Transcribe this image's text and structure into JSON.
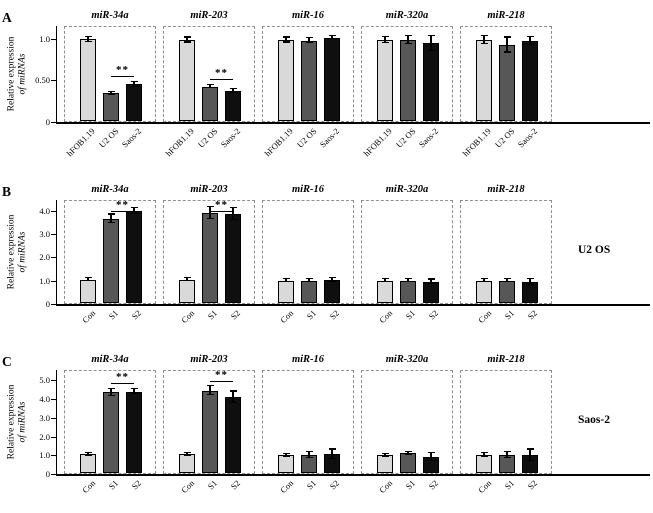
{
  "figure": {
    "bar_colors": [
      "#d9d9d9",
      "#575757",
      "#0f0f0f"
    ],
    "panel_border_color": "#8f8f8f",
    "axis_color": "#000000"
  },
  "chart_data": [
    {
      "type": "bar",
      "letter": "A",
      "ylabel_line1": "Relative expression",
      "ylabel_line2": "of miRNAs",
      "right_label": "",
      "ylim": [
        0,
        1.15
      ],
      "yticks": [
        {
          "label": "1.0",
          "value": 1.0
        },
        {
          "label": "0.50",
          "value": 0.5
        },
        {
          "label": "0",
          "value": 0
        }
      ],
      "categories": [
        "hFOB1.19",
        "U2 OS",
        "Saos-2"
      ],
      "panels": [
        {
          "title": "miR-34a",
          "values": [
            0.98,
            0.33,
            0.44
          ],
          "errors": [
            0.03,
            0.02,
            0.03
          ],
          "sig": "**",
          "sig_bars": [
            1,
            2
          ]
        },
        {
          "title": "miR-203",
          "values": [
            0.97,
            0.41,
            0.36
          ],
          "errors": [
            0.03,
            0.02,
            0.02
          ],
          "sig": "**",
          "sig_bars": [
            1,
            2
          ]
        },
        {
          "title": "miR-16",
          "values": [
            0.97,
            0.96,
            1.0
          ],
          "errors": [
            0.03,
            0.03,
            0.02
          ]
        },
        {
          "title": "miR-320a",
          "values": [
            0.97,
            0.97,
            0.93
          ],
          "errors": [
            0.04,
            0.05,
            0.09
          ]
        },
        {
          "title": "miR-218",
          "values": [
            0.97,
            0.91,
            0.96
          ],
          "errors": [
            0.05,
            0.09,
            0.05
          ]
        }
      ]
    },
    {
      "type": "bar",
      "letter": "B",
      "ylabel_line1": "Relative expression",
      "ylabel_line2": "of miRNAs",
      "right_label": "U2 OS",
      "ylim": [
        0,
        4.45
      ],
      "yticks": [
        {
          "label": "4.0",
          "value": 4.0
        },
        {
          "label": "3.0",
          "value": 3.0
        },
        {
          "label": "2.0",
          "value": 2.0
        },
        {
          "label": "1.0",
          "value": 1.0
        },
        {
          "label": "0",
          "value": 0
        }
      ],
      "categories": [
        "Con",
        "S1",
        "S2"
      ],
      "panels": [
        {
          "title": "miR-34a",
          "values": [
            1.0,
            3.6,
            3.95
          ],
          "errors": [
            0.07,
            0.18,
            0.12
          ],
          "sig": "**",
          "sig_bars": [
            1,
            2
          ]
        },
        {
          "title": "miR-203",
          "values": [
            1.0,
            3.85,
            3.8
          ],
          "errors": [
            0.07,
            0.25,
            0.25
          ],
          "sig": "**",
          "sig_bars": [
            1,
            2
          ]
        },
        {
          "title": "miR-16",
          "values": [
            0.95,
            0.95,
            0.98
          ],
          "errors": [
            0.07,
            0.07,
            0.07
          ]
        },
        {
          "title": "miR-320a",
          "values": [
            0.95,
            0.95,
            0.9
          ],
          "errors": [
            0.07,
            0.07,
            0.1
          ]
        },
        {
          "title": "miR-218",
          "values": [
            0.95,
            0.95,
            0.9
          ],
          "errors": [
            0.07,
            0.07,
            0.12
          ]
        }
      ]
    },
    {
      "type": "bar",
      "letter": "C",
      "ylabel_line1": "Relative expression",
      "ylabel_line2": "of miRNAs",
      "right_label": "Saos-2",
      "ylim": [
        0,
        5.55
      ],
      "yticks": [
        {
          "label": "5.0",
          "value": 5.0
        },
        {
          "label": "4.0",
          "value": 4.0
        },
        {
          "label": "3.0",
          "value": 3.0
        },
        {
          "label": "2.0",
          "value": 2.0
        },
        {
          "label": "1.0",
          "value": 1.0
        },
        {
          "label": "0",
          "value": 0
        }
      ],
      "categories": [
        "Con",
        "S1",
        "S2"
      ],
      "panels": [
        {
          "title": "miR-34a",
          "values": [
            1.0,
            4.3,
            4.35
          ],
          "errors": [
            0.07,
            0.2,
            0.15
          ],
          "sig": "**",
          "sig_bars": [
            1,
            2
          ]
        },
        {
          "title": "miR-203",
          "values": [
            1.0,
            4.4,
            4.05
          ],
          "errors": [
            0.07,
            0.25,
            0.3
          ],
          "sig": "**",
          "sig_bars": [
            1,
            2
          ]
        },
        {
          "title": "miR-16",
          "values": [
            0.95,
            0.95,
            1.0
          ],
          "errors": [
            0.08,
            0.15,
            0.25
          ]
        },
        {
          "title": "miR-320a",
          "values": [
            0.95,
            1.05,
            0.85
          ],
          "errors": [
            0.08,
            0.08,
            0.2
          ]
        },
        {
          "title": "miR-218",
          "values": [
            0.95,
            0.95,
            0.95
          ],
          "errors": [
            0.1,
            0.15,
            0.3
          ]
        }
      ]
    }
  ]
}
